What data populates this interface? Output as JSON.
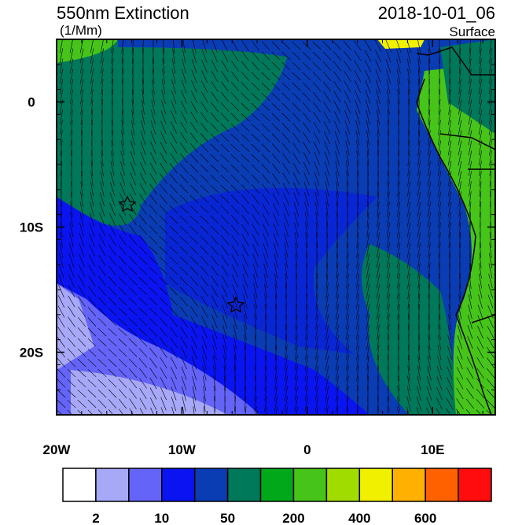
{
  "map": {
    "title": "550nm Extinction",
    "units": "(1/Mm)",
    "time": "2018-10-01_06",
    "level": "Surface",
    "xlim": [
      -20,
      15
    ],
    "ylim": [
      -25,
      5
    ],
    "xticks": [
      {
        "value": -20,
        "label": "20W"
      },
      {
        "value": -10,
        "label": "10W"
      },
      0,
      {
        "value": 10,
        "label": "10E"
      }
    ],
    "yticks": [
      0,
      {
        "value": -10,
        "label": "10S"
      },
      {
        "value": -20,
        "label": "20S"
      }
    ],
    "colorbar": {
      "colors": [
        "#ffffff",
        "#a8a8f8",
        "#6464f8",
        "#0a14f0",
        "#0a3cb4",
        "#00785a",
        "#00a81a",
        "#46c41a",
        "#a0dc00",
        "#f0f000",
        "#ffb000",
        "#ff6000",
        "#ff0c0c"
      ],
      "labels": [
        2,
        10,
        50,
        200,
        400,
        600
      ]
    }
  }
}
